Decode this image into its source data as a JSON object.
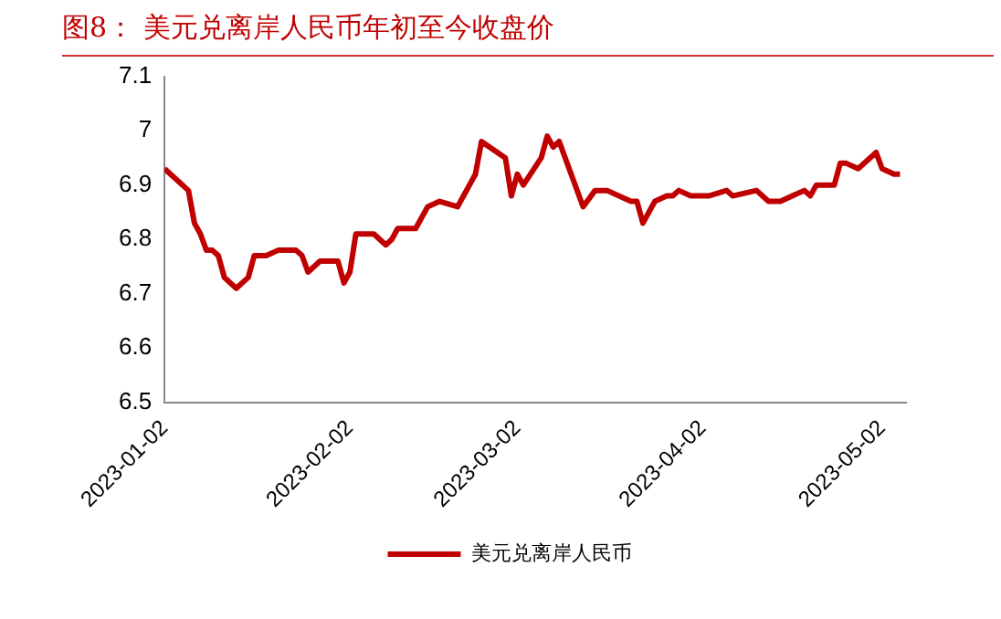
{
  "chart_data": {
    "type": "line",
    "title": "图8：  美元兑离岸人民币年初至今收盘价",
    "x": [
      "2023-01-02",
      "2023-01-03",
      "2023-01-06",
      "2023-01-07",
      "2023-01-08",
      "2023-01-09",
      "2023-01-10",
      "2023-01-11",
      "2023-01-12",
      "2023-01-14",
      "2023-01-16",
      "2023-01-17",
      "2023-01-19",
      "2023-01-21",
      "2023-01-23",
      "2023-01-24",
      "2023-01-25",
      "2023-01-26",
      "2023-01-28",
      "2023-01-31",
      "2023-02-01",
      "2023-02-02",
      "2023-02-03",
      "2023-02-06",
      "2023-02-08",
      "2023-02-09",
      "2023-02-10",
      "2023-02-13",
      "2023-02-15",
      "2023-02-17",
      "2023-02-20",
      "2023-02-22",
      "2023-02-23",
      "2023-02-24",
      "2023-02-28",
      "2023-03-01",
      "2023-03-02",
      "2023-03-03",
      "2023-03-06",
      "2023-03-07",
      "2023-03-08",
      "2023-03-09",
      "2023-03-13",
      "2023-03-15",
      "2023-03-17",
      "2023-03-21",
      "2023-03-22",
      "2023-03-23",
      "2023-03-25",
      "2023-03-27",
      "2023-03-28",
      "2023-03-29",
      "2023-03-31",
      "2023-04-03",
      "2023-04-06",
      "2023-04-07",
      "2023-04-11",
      "2023-04-13",
      "2023-04-15",
      "2023-04-17",
      "2023-04-19",
      "2023-04-20",
      "2023-04-21",
      "2023-04-24",
      "2023-04-25",
      "2023-04-26",
      "2023-04-28",
      "2023-05-01",
      "2023-05-02",
      "2023-05-04",
      "2023-05-05"
    ],
    "series": [
      {
        "name": "美元兑离岸人民币",
        "color": "#c00000",
        "values": [
          6.93,
          6.92,
          6.89,
          6.83,
          6.81,
          6.78,
          6.78,
          6.77,
          6.73,
          6.71,
          6.73,
          6.77,
          6.77,
          6.78,
          6.78,
          6.78,
          6.77,
          6.74,
          6.76,
          6.76,
          6.72,
          6.74,
          6.81,
          6.81,
          6.79,
          6.8,
          6.82,
          6.82,
          6.86,
          6.87,
          6.86,
          6.9,
          6.92,
          6.98,
          6.95,
          6.88,
          6.92,
          6.9,
          6.95,
          6.99,
          6.97,
          6.98,
          6.86,
          6.89,
          6.89,
          6.87,
          6.87,
          6.83,
          6.87,
          6.88,
          6.88,
          6.89,
          6.88,
          6.88,
          6.89,
          6.88,
          6.89,
          6.87,
          6.87,
          6.88,
          6.89,
          6.88,
          6.9,
          6.9,
          6.94,
          6.94,
          6.93,
          6.96,
          6.93,
          6.92,
          6.92
        ]
      }
    ],
    "xlim": [
      "2023-01-02",
      "2023-05-06"
    ],
    "xticks": [
      "2023-01-02",
      "2023-02-02",
      "2023-03-02",
      "2023-04-02",
      "2023-05-02"
    ],
    "ylim": [
      6.5,
      7.1
    ],
    "yticks": [
      6.5,
      6.6,
      6.7,
      6.8,
      6.9,
      7,
      7.1
    ],
    "grid": false,
    "legend": "bottom",
    "marker": "none",
    "line_style": "solid"
  }
}
